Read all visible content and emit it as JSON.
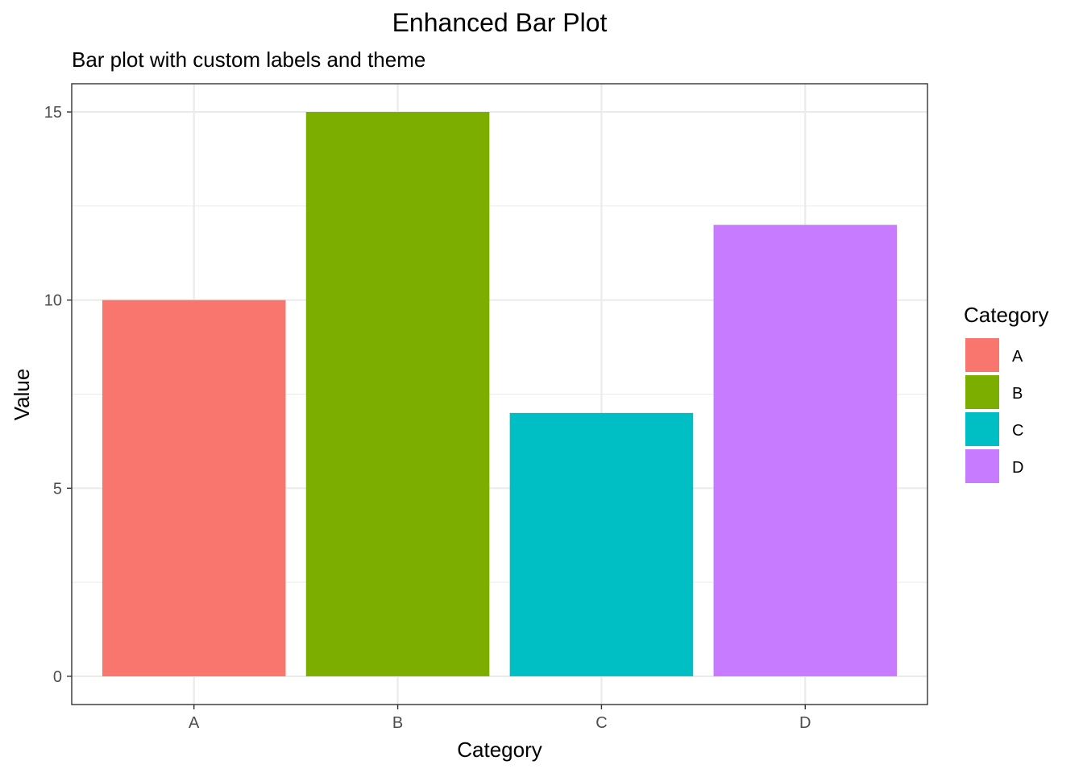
{
  "chart_data": {
    "type": "bar",
    "title": "Enhanced Bar Plot",
    "subtitle": "Bar plot with custom labels and theme",
    "xlabel": "Category",
    "ylabel": "Value",
    "categories": [
      "A",
      "B",
      "C",
      "D"
    ],
    "values": [
      10,
      15,
      7,
      12
    ],
    "colors": [
      "#F8766D",
      "#7CAE00",
      "#00BFC4",
      "#C77CFF"
    ],
    "ylim": [
      -0.75,
      15.75
    ],
    "yticks": [
      0,
      5,
      10,
      15
    ],
    "ytick_labels": [
      "0",
      "5",
      "10",
      "15"
    ],
    "grid": true,
    "legend": {
      "title": "Category",
      "position": "right",
      "entries": [
        "A",
        "B",
        "C",
        "D"
      ]
    }
  }
}
